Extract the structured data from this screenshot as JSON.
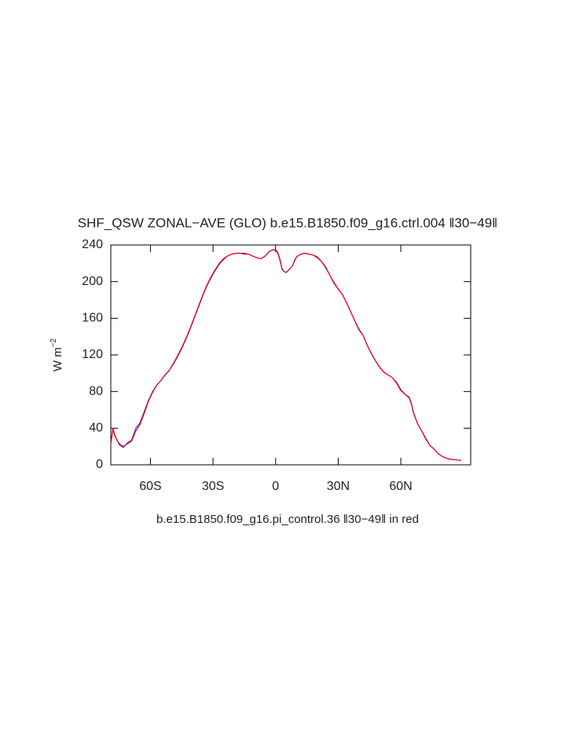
{
  "chart_data": {
    "type": "line",
    "title": "SHF_QSW ZONAL−AVE (GLO) b.e15.B1850.f09_g16.ctrl.004 ‖30−49‖",
    "subtitle": "b.e15.B1850.f09_g16.pi_control.36 ‖30−49‖ in red",
    "ylabel": {
      "base": "W m",
      "sup": "−2"
    },
    "xlim": [
      -79,
      93.5
    ],
    "ylim": [
      0,
      240
    ],
    "xticks": [
      {
        "value": -60,
        "label": "60S"
      },
      {
        "value": -30,
        "label": "30S"
      },
      {
        "value": 0,
        "label": "0"
      },
      {
        "value": 30,
        "label": "30N"
      },
      {
        "value": 60,
        "label": "60N"
      }
    ],
    "yticks": [
      0,
      40,
      80,
      120,
      160,
      200,
      240
    ],
    "x": [
      -79,
      -78,
      -77,
      -75,
      -73,
      -71,
      -69,
      -67,
      -65,
      -63,
      -61,
      -59,
      -57,
      -55,
      -53,
      -51,
      -49,
      -47,
      -45,
      -43,
      -41,
      -39,
      -37,
      -35,
      -33,
      -31,
      -29,
      -27,
      -25,
      -23,
      -21,
      -19,
      -17,
      -15,
      -13,
      -11,
      -9,
      -7,
      -5,
      -3,
      -1,
      0,
      1,
      2,
      3,
      4,
      5,
      6,
      8,
      9,
      10,
      12,
      14,
      16,
      18,
      20,
      22,
      24,
      26,
      28,
      30,
      32,
      34,
      36,
      38,
      40,
      42,
      44,
      46,
      48,
      50,
      52,
      54,
      56,
      58,
      60,
      62,
      64,
      65,
      66,
      68,
      70,
      72,
      74,
      76,
      78,
      80,
      82,
      84,
      86,
      88,
      89
    ],
    "series": [
      {
        "name": "ctrl.004",
        "color": "#3333ff",
        "values": [
          22,
          40,
          32,
          22,
          19,
          24,
          27,
          40,
          46,
          58,
          70,
          80,
          87,
          92,
          98,
          103,
          110,
          118,
          127,
          137,
          148,
          160,
          172,
          184,
          195,
          204,
          212,
          219,
          224,
          228,
          230,
          231,
          231,
          231,
          230,
          228,
          226,
          225,
          228,
          233,
          235,
          235,
          232,
          225,
          215,
          211,
          210,
          212,
          217,
          222,
          227,
          230,
          231,
          230,
          229,
          226,
          222,
          215,
          207,
          198,
          192,
          186,
          177,
          167,
          157,
          147,
          141,
          130,
          121,
          113,
          106,
          101,
          98,
          95,
          90,
          82,
          77,
          74,
          68,
          58,
          45,
          37,
          29,
          21,
          17,
          12,
          9,
          7,
          6,
          5.5,
          5,
          5
        ]
      },
      {
        "name": "pi_control.36",
        "color": "#ff0000",
        "values": [
          23,
          39,
          31,
          23,
          20,
          23,
          26,
          37,
          44,
          56,
          69,
          79,
          87,
          92,
          98,
          103,
          111,
          119,
          128,
          138,
          149,
          161,
          173,
          185,
          196,
          205,
          213,
          220,
          225,
          228,
          230,
          231,
          231,
          230,
          230,
          228,
          226,
          225,
          228,
          233,
          235,
          234,
          231,
          224,
          214,
          211,
          210,
          212,
          217,
          223,
          227,
          230,
          231,
          230,
          229,
          227,
          222,
          216,
          207,
          199,
          192,
          186,
          177,
          167,
          157,
          148,
          141,
          130,
          121,
          113,
          106,
          101,
          98,
          95,
          89,
          81,
          77,
          73,
          67,
          57,
          45,
          37,
          28,
          21,
          17,
          12,
          9,
          7,
          6,
          5.5,
          5,
          5
        ]
      }
    ]
  }
}
